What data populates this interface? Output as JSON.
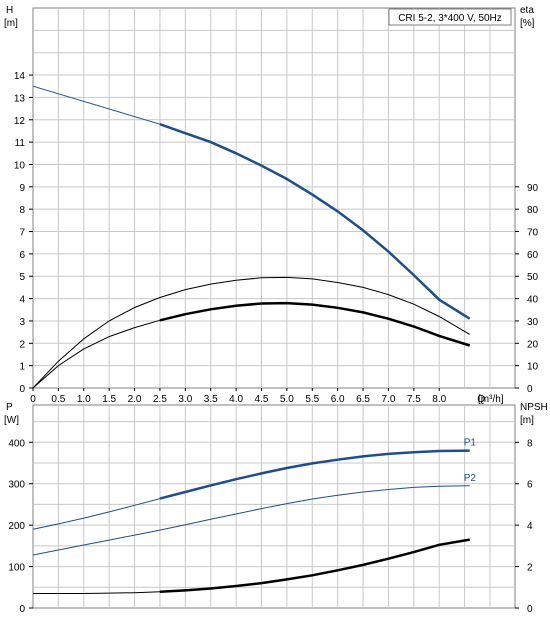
{
  "chart_data": [
    {
      "type": "line",
      "title": "CRI 5-2, 3*400 V, 50Hz",
      "xlabel": "Q [m³/h]",
      "y_left": {
        "label_line1": "H",
        "label_line2": "[m]",
        "lim": [
          0,
          17
        ],
        "ticks": [
          0,
          1,
          2,
          3,
          4,
          5,
          6,
          7,
          8,
          9,
          10,
          11,
          12,
          13,
          14
        ]
      },
      "y_right": {
        "label_line1": "eta",
        "label_line2": "[%]",
        "lim": [
          0,
          170
        ],
        "ticks": [
          0,
          10,
          20,
          30,
          40,
          50,
          60,
          70,
          80,
          90
        ]
      },
      "xlim": [
        0,
        9
      ],
      "x_ticks": [
        "0",
        "0.5",
        "1.0",
        "1.5",
        "2.0",
        "2.5",
        "3.0",
        "3.5",
        "4.0",
        "4.5",
        "5.0",
        "5.5",
        "6.0",
        "6.5",
        "7.0",
        "7.5",
        "8.0"
      ],
      "x_end_label": "Q",
      "grid": true,
      "series": [
        {
          "axis": "left",
          "color": "#1f4e8c",
          "x": [
            0,
            2.5,
            3.0,
            3.5,
            4.0,
            4.5,
            5.0,
            5.5,
            6.0,
            6.5,
            7.0,
            7.5,
            8.0,
            8.6
          ],
          "y": [
            13.5,
            11.8,
            11.4,
            11.0,
            10.5,
            9.95,
            9.35,
            8.65,
            7.9,
            7.05,
            6.1,
            5.05,
            3.95,
            3.1
          ],
          "bold_from": 2.5
        },
        {
          "axis": "right",
          "color": "#000000",
          "x": [
            0,
            0.5,
            1.0,
            1.5,
            2.0,
            2.5,
            3.0,
            3.5,
            4.0,
            4.5,
            5.0,
            5.5,
            6.0,
            6.5,
            7.0,
            7.5,
            8.0,
            8.6
          ],
          "y": [
            0,
            12,
            22,
            30,
            36,
            40.5,
            44,
            46.5,
            48.2,
            49.3,
            49.5,
            48.8,
            47.2,
            45,
            41.8,
            37.5,
            32,
            24
          ],
          "bold_from": 99
        },
        {
          "axis": "right",
          "color": "#000000",
          "x": [
            0,
            0.5,
            1.0,
            1.5,
            2.0,
            2.5,
            3.0,
            3.5,
            4.0,
            4.5,
            5.0,
            5.5,
            6.0,
            6.5,
            7.0,
            7.5,
            8.0,
            8.6
          ],
          "y": [
            0,
            10,
            17.5,
            23,
            27,
            30.3,
            33,
            35.2,
            36.8,
            37.8,
            38,
            37.3,
            35.9,
            33.8,
            31,
            27.5,
            23.3,
            19
          ],
          "bold_from": 2.5
        }
      ]
    },
    {
      "type": "line",
      "xlim": [
        0,
        9
      ],
      "y_left": {
        "label_line1": "P",
        "label_line2": "[W]",
        "lim": [
          0,
          490
        ],
        "ticks": [
          0,
          100,
          200,
          300,
          400
        ]
      },
      "y_right": {
        "label_line1": "NPSH",
        "label_line2": "[m]",
        "lim": [
          0,
          9.8
        ],
        "ticks": [
          0,
          2,
          4,
          6,
          8
        ]
      },
      "grid": true,
      "series": [
        {
          "name": "P1",
          "axis": "left",
          "color": "#1f4e8c",
          "x": [
            0,
            0.5,
            1.0,
            1.5,
            2.0,
            2.5,
            3.0,
            3.5,
            4.0,
            4.5,
            5.0,
            5.5,
            6.0,
            6.5,
            7.0,
            7.5,
            8.0,
            8.6
          ],
          "y": [
            190,
            203,
            217,
            232,
            248,
            264,
            280,
            296,
            311,
            325,
            338,
            349,
            358,
            366,
            372,
            376,
            379,
            380
          ],
          "bold_from": 2.5
        },
        {
          "name": "P2",
          "axis": "left",
          "color": "#1f4e8c",
          "x": [
            0,
            0.5,
            1.0,
            1.5,
            2.0,
            2.5,
            3.0,
            3.5,
            4.0,
            4.5,
            5.0,
            5.5,
            6.0,
            6.5,
            7.0,
            7.5,
            8.0,
            8.6
          ],
          "y": [
            128,
            140,
            152,
            164,
            176,
            188,
            201,
            214,
            227,
            240,
            252,
            263,
            272,
            280,
            286,
            291,
            294,
            295
          ],
          "bold_from": 99
        },
        {
          "axis": "right",
          "color": "#000000",
          "x": [
            0,
            0.5,
            1.0,
            1.5,
            2.0,
            2.5,
            3.0,
            3.5,
            4.0,
            4.5,
            5.0,
            5.5,
            6.0,
            6.5,
            7.0,
            7.5,
            8.0,
            8.6
          ],
          "y": [
            0.7,
            0.7,
            0.7,
            0.72,
            0.74,
            0.78,
            0.85,
            0.94,
            1.06,
            1.2,
            1.38,
            1.58,
            1.82,
            2.08,
            2.38,
            2.7,
            3.05,
            3.3
          ],
          "bold_from": 2.5
        }
      ]
    }
  ]
}
